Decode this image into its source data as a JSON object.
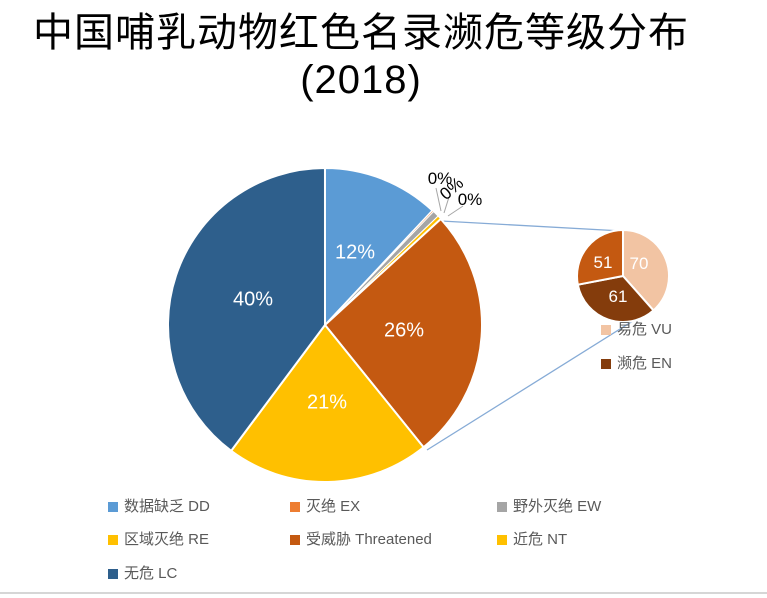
{
  "title": {
    "line1": "中国哺乳动物红色名录濒危等级分布",
    "line2": "(2018)"
  },
  "chart_data": {
    "type": "pie",
    "subtype": "pie-of-pie",
    "title": "中国哺乳动物红色名录濒危等级分布 (2018)",
    "legend_position": "bottom",
    "main": {
      "slices": [
        {
          "name": "数据缺乏 DD",
          "label": "12%",
          "value_pct": 12,
          "draw_pct": 12,
          "color": "#5B9BD5"
        },
        {
          "name": "灭绝 EX",
          "label": "0%",
          "value_pct": 0,
          "draw_pct": 0.15,
          "color": "#ED7D31"
        },
        {
          "name": "野外灭绝 EW",
          "label": "0%",
          "value_pct": 0,
          "draw_pct": 0.65,
          "color": "#A5A5A5"
        },
        {
          "name": "区域灭绝 RE",
          "label": "0%",
          "value_pct": 0,
          "draw_pct": 0.4,
          "color": "#FFC000"
        },
        {
          "name": "受威胁 Threatened",
          "label": "26%",
          "value_pct": 26,
          "draw_pct": 26,
          "color": "#C45911"
        },
        {
          "name": "近危 NT",
          "label": "21%",
          "value_pct": 21,
          "draw_pct": 21,
          "color": "#FFC000"
        },
        {
          "name": "无危 LC",
          "label": "40%",
          "value_pct": 40,
          "draw_pct": 39.8,
          "color": "#2E5F8C"
        }
      ]
    },
    "secondary": {
      "slices": [
        {
          "name": "易危 VU",
          "label": "70",
          "value": 70,
          "color": "#F2C4A3"
        },
        {
          "name": "濒危 EN",
          "label": "61",
          "value": 61,
          "color": "#843C0C"
        },
        {
          "label": "51",
          "value": 51,
          "color": "#C45911"
        }
      ]
    },
    "colors": {
      "connector_line": "#86ABD6",
      "leader_line": "#A6A6A6"
    }
  },
  "legend": {
    "items": [
      {
        "label": "数据缺乏 DD",
        "color": "#5B9BD5"
      },
      {
        "label": "灭绝 EX",
        "color": "#ED7D31"
      },
      {
        "label": "野外灭绝 EW",
        "color": "#A5A5A5"
      },
      {
        "label": "区域灭绝 RE",
        "color": "#FFC000"
      },
      {
        "label": "受威胁 Threatened",
        "color": "#C45911"
      },
      {
        "label": "近危 NT",
        "color": "#FFC000"
      },
      {
        "label": "无危 LC",
        "color": "#2E5F8C"
      }
    ]
  },
  "secondary_legend": {
    "items": [
      {
        "label": "易危 VU",
        "color": "#F2C4A3"
      },
      {
        "label": "濒危 EN",
        "color": "#843C0C"
      }
    ]
  }
}
